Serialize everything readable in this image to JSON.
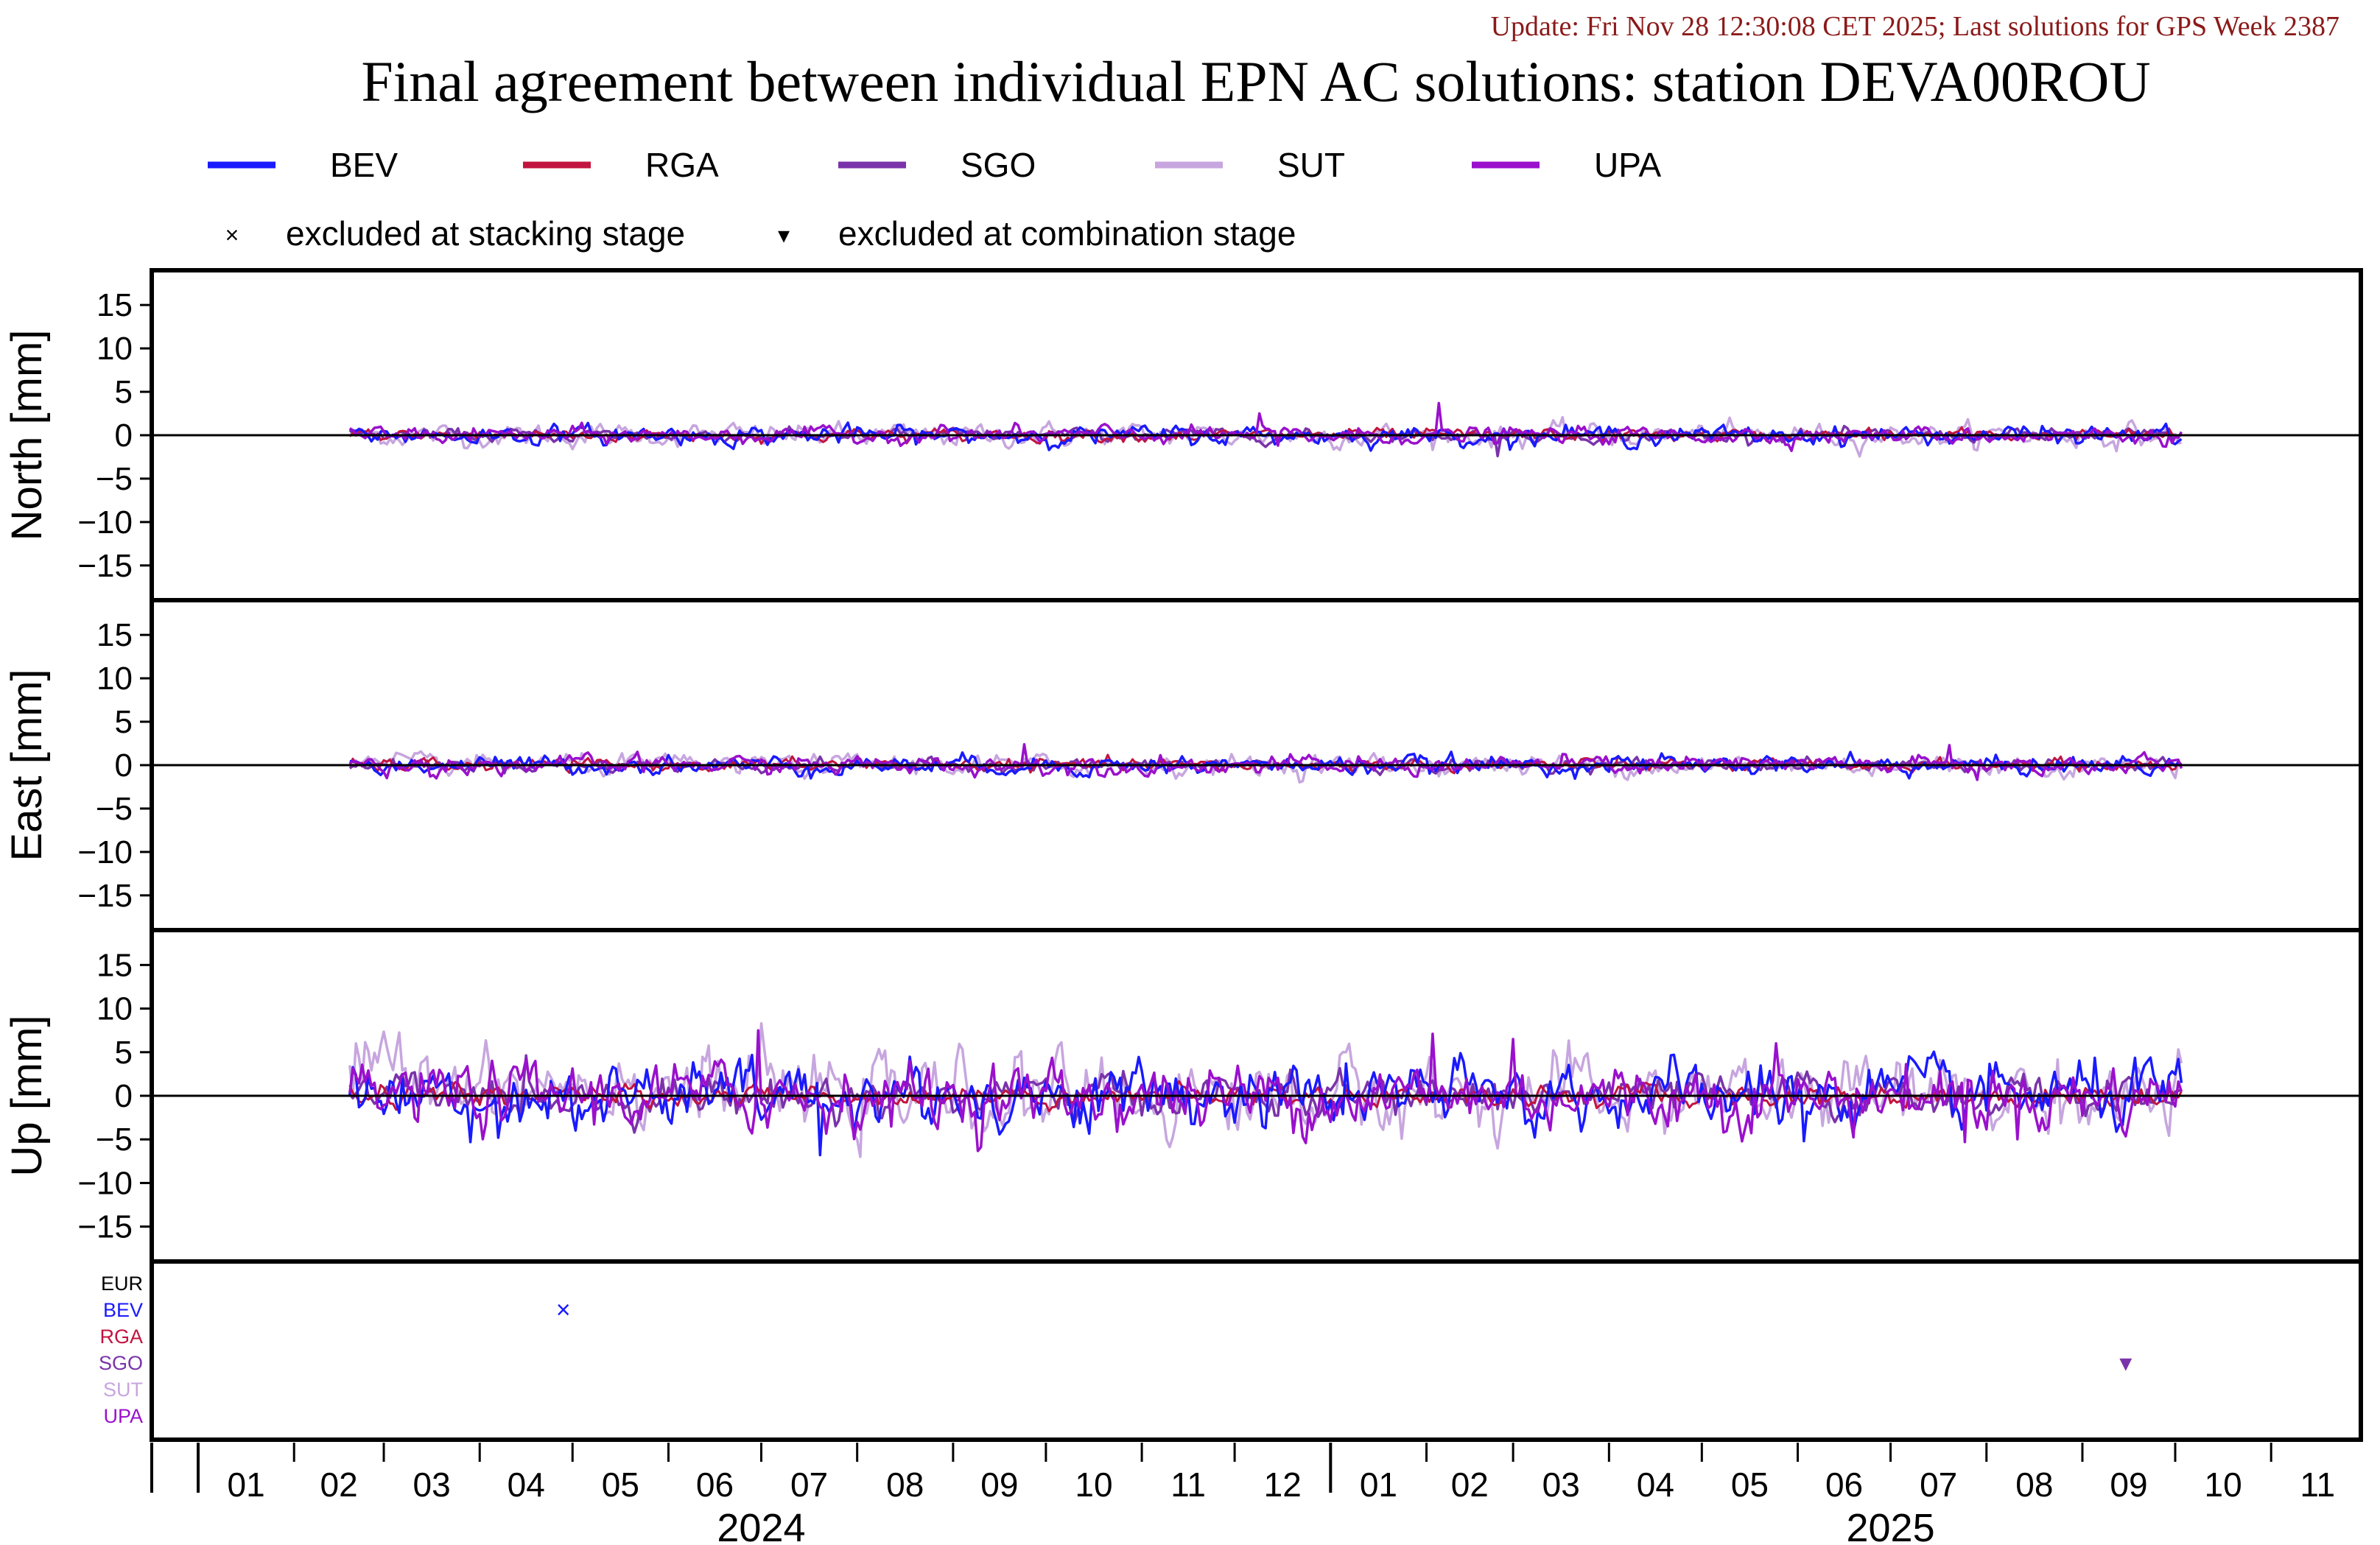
{
  "header": {
    "update_text": "Update: Fri Nov 28 12:30:08 CET 2025; Last solutions for GPS Week 2387",
    "title": "Final agreement between individual EPN AC solutions: station DEVA00ROU"
  },
  "colors": {
    "update_text": "#8b1a1a",
    "BEV": "#1a1aff",
    "RGA": "#c2143f",
    "SGO": "#7a33aa",
    "SUT": "#c7a6df",
    "UPA": "#9a10cc",
    "EUR": "#000000",
    "zero_line": "#000000",
    "frame": "#000000"
  },
  "legend": {
    "series": [
      {
        "name": "BEV",
        "color_key": "BEV"
      },
      {
        "name": "RGA",
        "color_key": "RGA"
      },
      {
        "name": "SGO",
        "color_key": "SGO"
      },
      {
        "name": "SUT",
        "color_key": "SUT"
      },
      {
        "name": "UPA",
        "color_key": "UPA"
      }
    ],
    "markers": [
      {
        "symbol": "×",
        "label": "excluded at stacking stage"
      },
      {
        "symbol": "▾",
        "label": "excluded at combination stage"
      }
    ]
  },
  "chart_data": {
    "type": "line",
    "x_axis": {
      "unit": "month",
      "range": [
        "2023-12-17",
        "2025-11-30"
      ],
      "tick_labels": [
        "01",
        "02",
        "03",
        "04",
        "05",
        "06",
        "07",
        "08",
        "09",
        "10",
        "11",
        "12",
        "01",
        "02",
        "03",
        "04",
        "05",
        "06",
        "07",
        "08",
        "09",
        "10",
        "11"
      ],
      "year_labels": [
        {
          "label": "2024",
          "at": "2024-07-01"
        },
        {
          "label": "2025",
          "at": "2025-07-01"
        }
      ]
    },
    "data_span": [
      "2024-02-19",
      "2025-10-03"
    ],
    "panels": [
      {
        "id": "north",
        "ylabel": "North [mm]",
        "ylim": [
          -19,
          19
        ],
        "yticks": [
          -15,
          -10,
          -5,
          0,
          5,
          10,
          15
        ],
        "noise_mm": {
          "BEV": 0.45,
          "RGA": 0.3,
          "SGO": 0.3,
          "SUT": 0.55,
          "UPA": 0.4
        },
        "spikes": [
          {
            "series": "UPA",
            "date": "2024-12-09",
            "value": 2.5
          },
          {
            "series": "UPA",
            "date": "2025-02-05",
            "value": 3.7
          },
          {
            "series": "SGO",
            "date": "2025-02-24",
            "value": -2.4
          },
          {
            "series": "UPA",
            "date": "2024-12-15",
            "value": -1.2
          }
        ]
      },
      {
        "id": "east",
        "ylabel": "East [mm]",
        "ylim": [
          -19,
          19
        ],
        "yticks": [
          -15,
          -10,
          -5,
          0,
          5,
          10,
          15
        ],
        "noise_mm": {
          "BEV": 0.45,
          "RGA": 0.3,
          "SGO": 0.3,
          "SUT": 0.5,
          "UPA": 0.45
        },
        "spikes": [
          {
            "series": "UPA",
            "date": "2024-09-24",
            "value": 2.4
          },
          {
            "series": "UPA",
            "date": "2025-07-20",
            "value": 2.3
          },
          {
            "series": "BEV",
            "date": "2025-06-18",
            "value": 1.5
          },
          {
            "series": "UPA",
            "date": "2025-07-29",
            "value": -1.7
          }
        ]
      },
      {
        "id": "up",
        "ylabel": "Up [mm]",
        "ylim": [
          -19,
          19
        ],
        "yticks": [
          -15,
          -10,
          -5,
          0,
          5,
          10,
          15
        ],
        "noise_mm": {
          "BEV": 1.6,
          "RGA": 0.5,
          "SGO": 1.0,
          "SUT": 1.8,
          "UPA": 1.6
        },
        "sut_offset_early_mm": 3.0,
        "spikes": [
          {
            "series": "SUT",
            "date": "2024-07-01",
            "value": 8.3
          },
          {
            "series": "UPA",
            "date": "2024-06-30",
            "value": 7.5
          },
          {
            "series": "UPA",
            "date": "2025-02-03",
            "value": 7.1
          },
          {
            "series": "UPA",
            "date": "2025-03-01",
            "value": 6.5
          },
          {
            "series": "UPA",
            "date": "2025-05-25",
            "value": 6.0
          },
          {
            "series": "SUT",
            "date": "2024-02-21",
            "value": 6.0
          },
          {
            "series": "BEV",
            "date": "2024-07-20",
            "value": -6.8
          },
          {
            "series": "BEV",
            "date": "2024-03-29",
            "value": -5.3
          },
          {
            "series": "BEV",
            "date": "2025-06-03",
            "value": -5.2
          },
          {
            "series": "UPA",
            "date": "2025-07-25",
            "value": -5.3
          }
        ]
      }
    ],
    "exclusion_panel": {
      "rows": [
        "EUR",
        "BEV",
        "RGA",
        "SGO",
        "SUT",
        "UPA"
      ],
      "events": [
        {
          "row": "BEV",
          "date": "2024-04-28",
          "marker": "×"
        },
        {
          "row": "SGO",
          "date": "2025-09-15",
          "marker": "▾"
        }
      ]
    }
  }
}
